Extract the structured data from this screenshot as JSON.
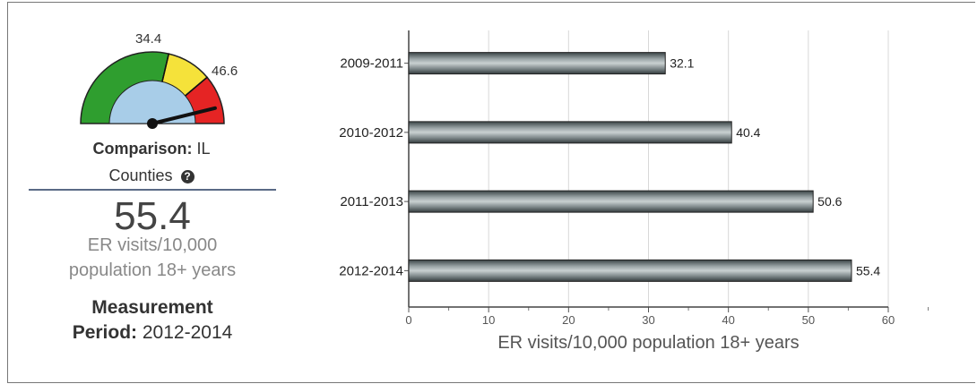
{
  "gauge": {
    "threshold_low_label": "34.4",
    "threshold_high_label": "46.6",
    "value": 55.4,
    "colors": {
      "green": "#2f9e2f",
      "yellow": "#f5e23a",
      "red": "#e52424",
      "inner": "#a8cde8"
    }
  },
  "summary": {
    "comparison_label": "Comparison:",
    "comparison_value": "IL",
    "comparison_value2": "Counties",
    "value": "55.4",
    "unit_line1": "ER visits/10,000",
    "unit_line2": "population 18+ years",
    "measurement_label": "Measurement",
    "period_label": "Period:",
    "period_value": "2012-2014"
  },
  "chart_data": {
    "type": "bar",
    "orientation": "horizontal",
    "categories": [
      "2009-2011",
      "2010-2012",
      "2011-2013",
      "2012-2014"
    ],
    "values": [
      32.1,
      40.4,
      50.6,
      55.4
    ],
    "value_labels": [
      "32.1",
      "40.4",
      "50.6",
      "55.4"
    ],
    "xlabel": "ER visits/10,000 population 18+ years",
    "xlim": [
      0,
      60
    ],
    "xticks": [
      "0",
      "10",
      "20",
      "30",
      "40",
      "50",
      "60"
    ],
    "grid": true,
    "bar_color": "#5f6b6e"
  }
}
